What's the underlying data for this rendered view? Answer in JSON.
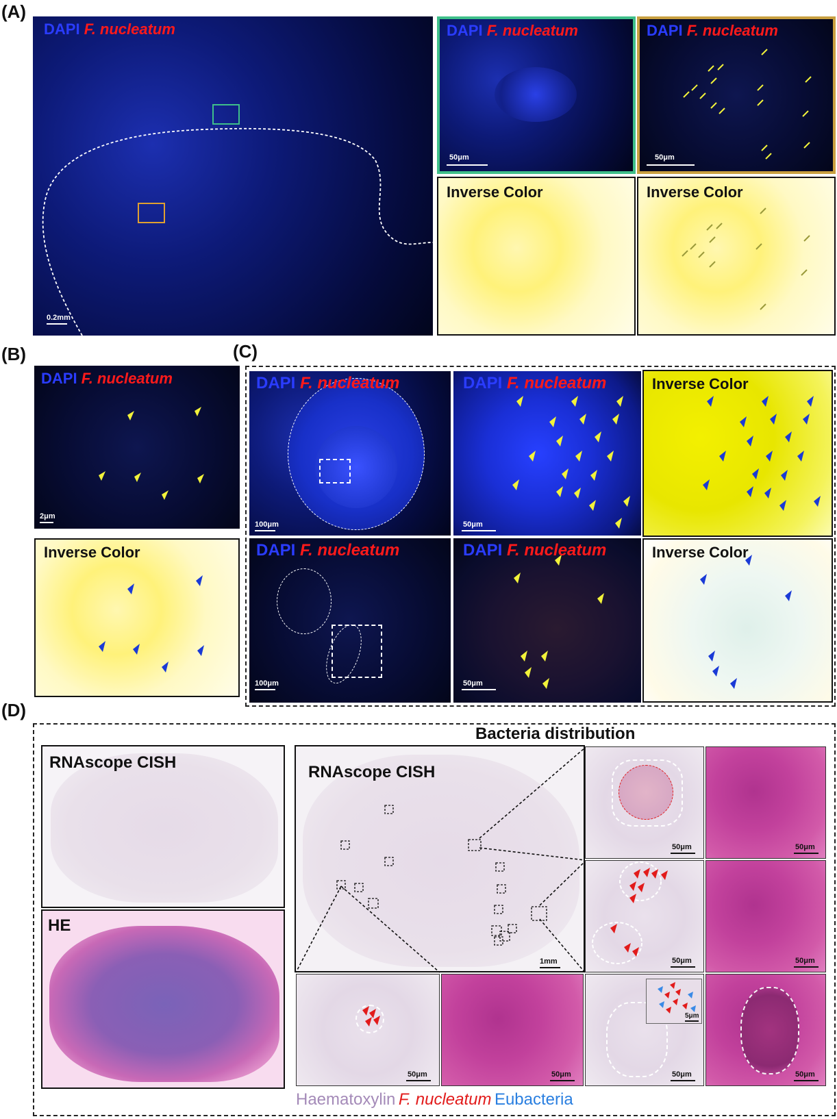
{
  "panels": {
    "A": "(A)",
    "B": "(B)",
    "C": "(C)",
    "D": "(D)"
  },
  "labels": {
    "dapi": "DAPI",
    "fnuc": "F. nucleatum",
    "inverse": "Inverse Color",
    "rnascope": "RNAscope CISH",
    "he": "HE",
    "bacteria_distribution": "Bacteria distribution"
  },
  "scalebars": {
    "a_main": "0.2mm",
    "a_zoom1": "50μm",
    "a_zoom2": "50μm",
    "b_main": "2μm",
    "c_top1": "100μm",
    "c_top2": "50μm",
    "c_bot1": "100μm",
    "c_bot2": "50μm",
    "d_main": "1mm",
    "d_r1": "50μm",
    "d_r2": "50μm",
    "d_r3": "50μm",
    "d_r4": "50μm",
    "d_b1": "50μm",
    "d_b2": "50μm",
    "d_b3": "50μm",
    "d_b4": "50μm",
    "d_inset": "5μm"
  },
  "legend": {
    "haematoxylin": "Haematoxylin",
    "fnuc": "F. nucleatum",
    "eubacteria": "Eubacteria"
  },
  "colors": {
    "green_box": "#3fbf8a",
    "orange_box": "#e0a030",
    "arrow_yellow": "#f2f23a",
    "arrow_blue": "#1a3ad6",
    "arrow_red": "#e21b1b"
  }
}
